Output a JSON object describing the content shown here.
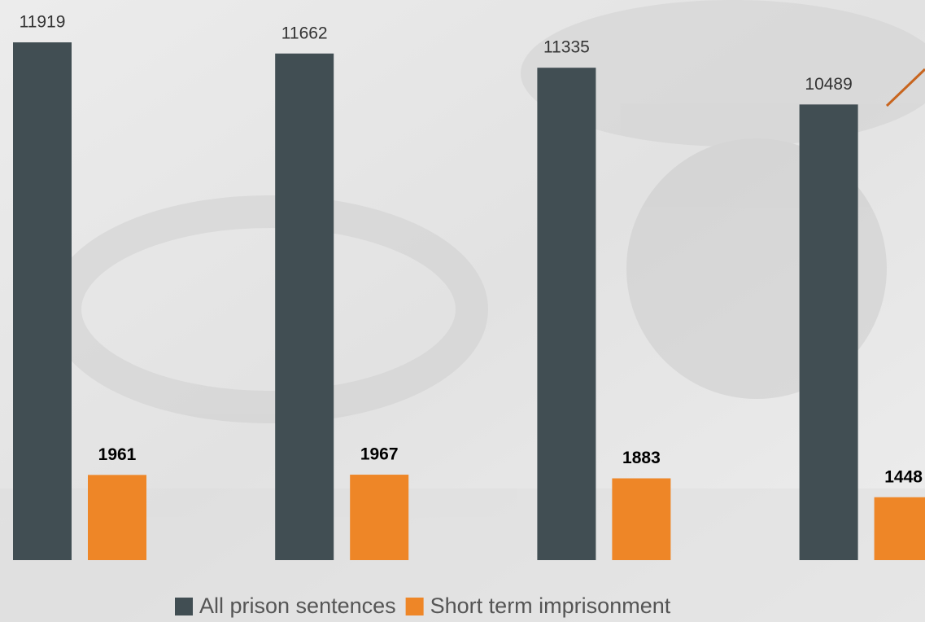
{
  "chart_data": {
    "type": "bar",
    "series": [
      {
        "name": "All prison sentences",
        "color": "#414e53",
        "values": [
          11919,
          11662,
          11335,
          10489
        ]
      },
      {
        "name": "Short term imprisonment",
        "color": "#ee8627",
        "values": [
          1961,
          1967,
          1883,
          1448
        ]
      }
    ],
    "ylim": [
      0,
      12000
    ]
  }
}
